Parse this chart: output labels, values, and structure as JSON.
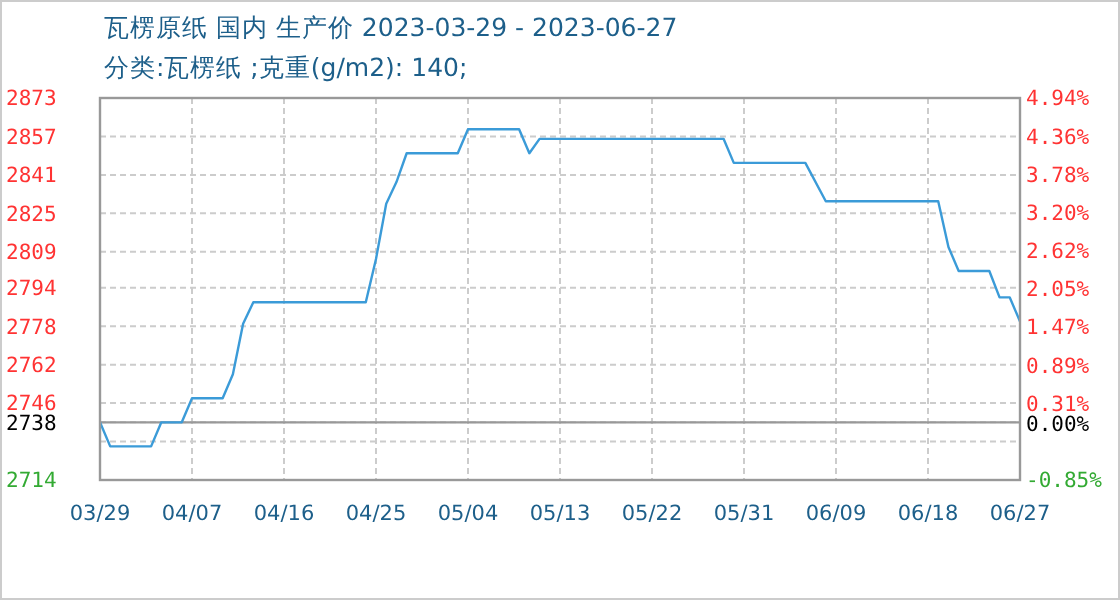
{
  "chart_data": {
    "type": "line",
    "title": "瓦楞原纸 国内 生产价 2023-03-29 - 2023-06-27",
    "subtitle": "分类:瓦楞纸 ;克重(g/m2): 140;",
    "x": [
      "2023-03-29",
      "2023-03-30",
      "2023-04-03",
      "2023-04-04",
      "2023-04-06",
      "2023-04-07",
      "2023-04-10",
      "2023-04-11",
      "2023-04-12",
      "2023-04-13",
      "2023-04-24",
      "2023-04-25",
      "2023-04-26",
      "2023-04-27",
      "2023-04-28",
      "2023-05-03",
      "2023-05-04",
      "2023-05-09",
      "2023-05-10",
      "2023-05-11",
      "2023-05-29",
      "2023-05-30",
      "2023-06-06",
      "2023-06-08",
      "2023-06-19",
      "2023-06-20",
      "2023-06-21",
      "2023-06-24",
      "2023-06-25",
      "2023-06-26",
      "2023-06-27"
    ],
    "series": [
      {
        "color": "#3b9bd8",
        "values": [
          2738,
          2728,
          2728,
          2738,
          2738,
          2748,
          2748,
          2758,
          2779,
          2788,
          2788,
          2806,
          2829,
          2838,
          2850,
          2850,
          2860,
          2860,
          2850,
          2856,
          2856,
          2846,
          2846,
          2830,
          2830,
          2811,
          2801,
          2801,
          2790,
          2790,
          2780
        ]
      }
    ],
    "xlim": [
      "2023-03-29",
      "2023-06-27"
    ],
    "xticks": [
      {
        "value": "2023-03-29",
        "label": "03/29"
      },
      {
        "value": "2023-04-07",
        "label": "04/07"
      },
      {
        "value": "2023-04-16",
        "label": "04/16"
      },
      {
        "value": "2023-04-25",
        "label": "04/25"
      },
      {
        "value": "2023-05-04",
        "label": "05/04"
      },
      {
        "value": "2023-05-13",
        "label": "05/13"
      },
      {
        "value": "2023-05-22",
        "label": "05/22"
      },
      {
        "value": "2023-05-31",
        "label": "05/31"
      },
      {
        "value": "2023-06-09",
        "label": "06/09"
      },
      {
        "value": "2023-06-18",
        "label": "06/18"
      },
      {
        "value": "2023-06-27",
        "label": "06/27"
      }
    ],
    "ylim": [
      2714,
      2873
    ],
    "yticks": [
      2873,
      2857,
      2841,
      2825,
      2809,
      2794,
      2778,
      2762,
      2746,
      2738,
      {
        "value": 2730,
        "label": null
      },
      2714
    ],
    "y2lim": [
      -0.85,
      4.94
    ],
    "y2ticks": [
      {
        "value": 4.94,
        "label": "4.94%"
      },
      {
        "value": 4.36,
        "label": "4.36%"
      },
      {
        "value": 3.78,
        "label": "3.78%"
      },
      {
        "value": 3.2,
        "label": "3.20%"
      },
      {
        "value": 2.62,
        "label": "2.62%"
      },
      {
        "value": 2.05,
        "label": "2.05%"
      },
      {
        "value": 1.47,
        "label": "1.47%"
      },
      {
        "value": 0.89,
        "label": "0.89%"
      },
      {
        "value": 0.31,
        "label": "0.31%"
      },
      {
        "value": 0,
        "label": "0.00%"
      },
      {
        "value": -0.85,
        "label": "-0.85%"
      }
    ],
    "ref_lines": [
      {
        "axis": "y",
        "value": 2738,
        "color": "#999999"
      }
    ],
    "grid": true,
    "marker": "none",
    "line_style": "solid"
  }
}
